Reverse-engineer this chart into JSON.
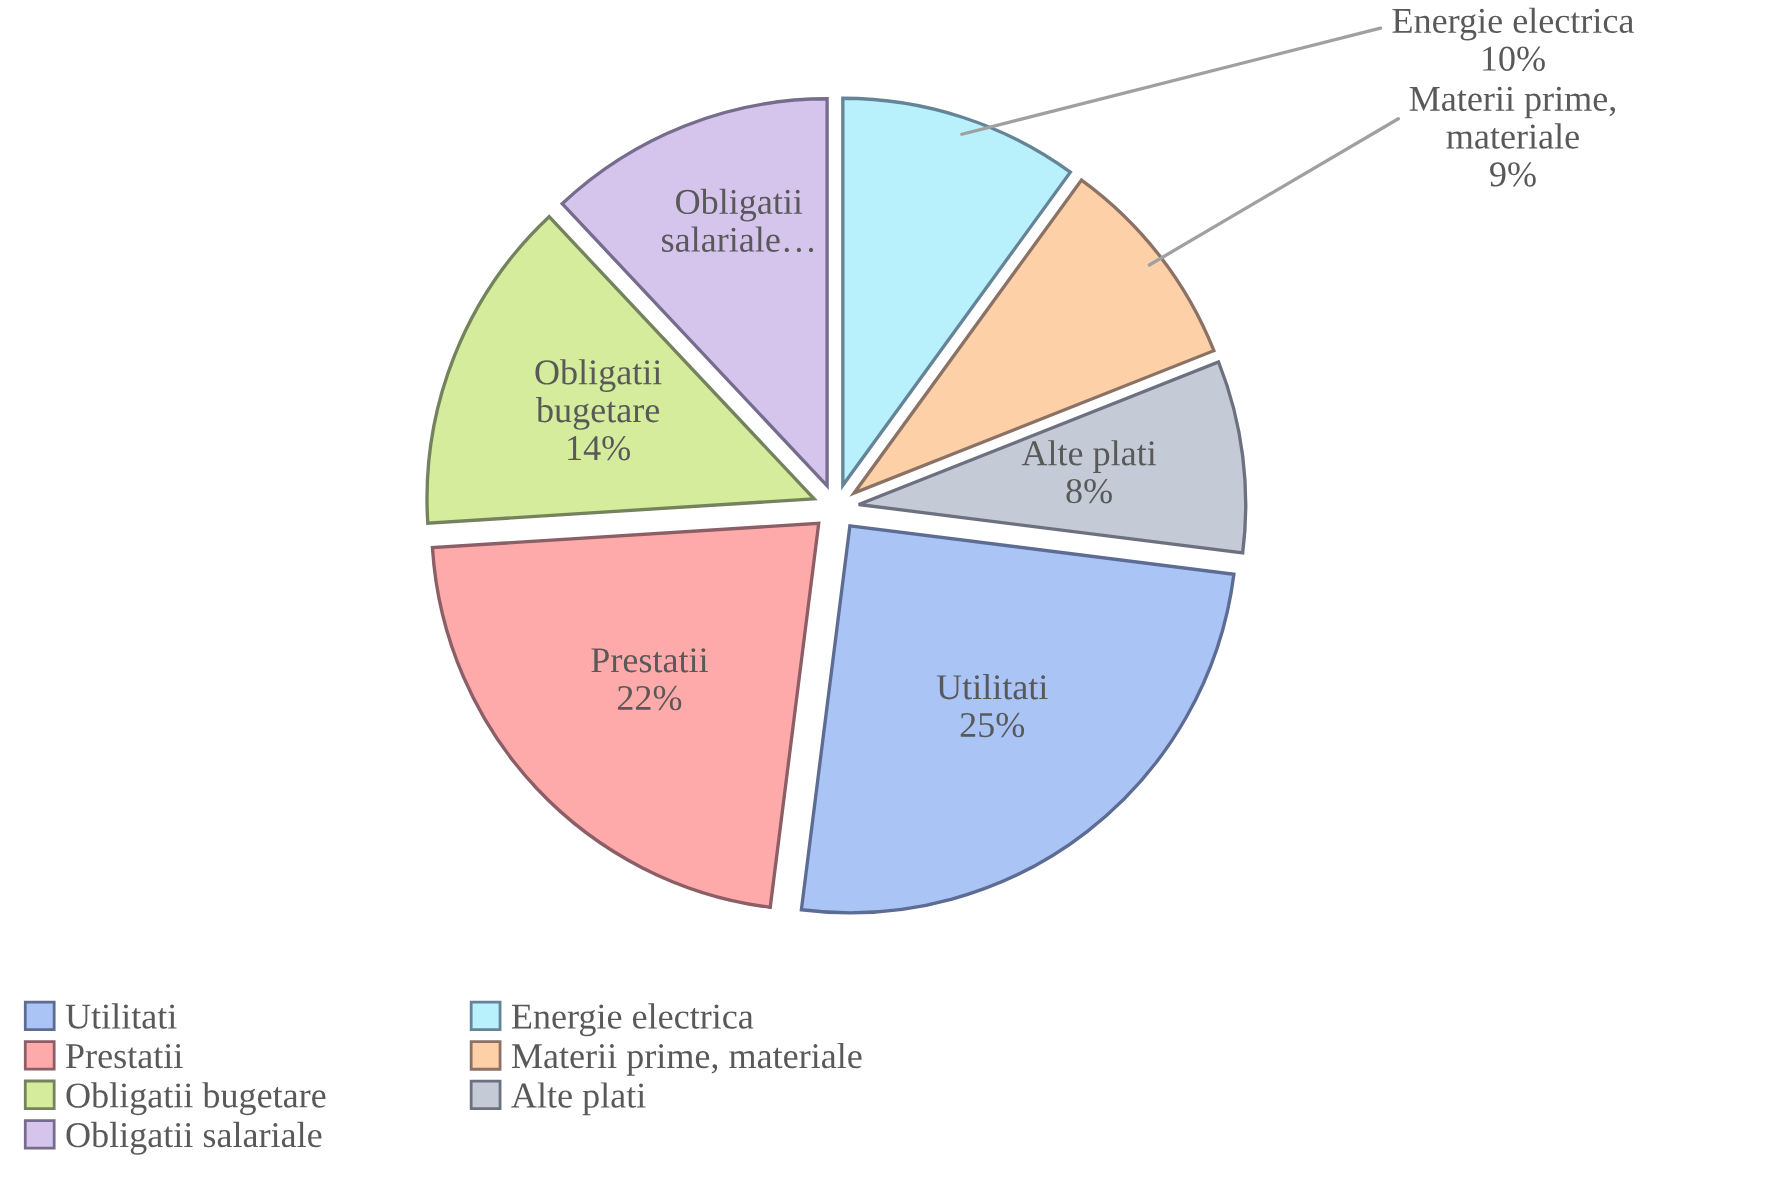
{
  "chart_data": {
    "type": "pie",
    "categories": [
      "Utilitati",
      "Prestatii",
      "Obligatii bugetare",
      "Obligatii salariale",
      "Energie electrica",
      "Materii prime, materiale",
      "Alte plati"
    ],
    "values": [
      25,
      22,
      14,
      12,
      10,
      9,
      8
    ],
    "colors": [
      "#a9c4f5",
      "#ffaaaa",
      "#d4ec9c",
      "#d5c5ec",
      "#b8f0fb",
      "#fdd0a8",
      "#c5cbd6"
    ],
    "value_labels": [
      "25%",
      "22%",
      "14%",
      null,
      "10%",
      "9%",
      "8%"
    ],
    "annotations": [
      "Obligatii salariale…"
    ],
    "legend": "bottom"
  }
}
